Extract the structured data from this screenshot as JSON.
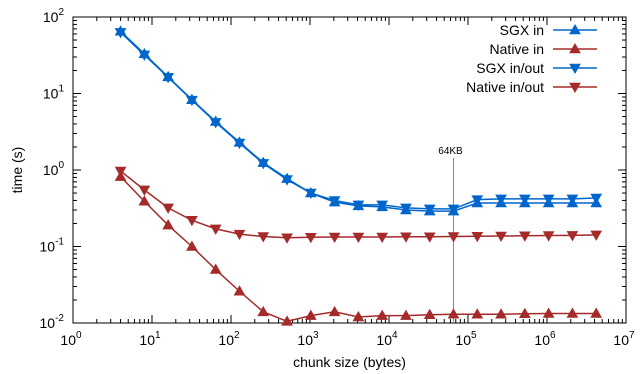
{
  "chart_data": {
    "type": "line",
    "xscale": "log",
    "yscale": "log",
    "xlabel": "chunk size (bytes)",
    "ylabel": "time (s)",
    "xlim": [
      1,
      10000000
    ],
    "ylim": [
      0.01,
      100
    ],
    "x_ticks": [
      {
        "base": "10",
        "exp": "0",
        "value": 1
      },
      {
        "base": "10",
        "exp": "1",
        "value": 10
      },
      {
        "base": "10",
        "exp": "2",
        "value": 100
      },
      {
        "base": "10",
        "exp": "3",
        "value": 1000
      },
      {
        "base": "10",
        "exp": "4",
        "value": 10000
      },
      {
        "base": "10",
        "exp": "5",
        "value": 100000
      },
      {
        "base": "10",
        "exp": "6",
        "value": 1000000
      },
      {
        "base": "10",
        "exp": "7",
        "value": 10000000
      }
    ],
    "y_ticks": [
      {
        "base": "10",
        "exp": "-2",
        "value": 0.01
      },
      {
        "base": "10",
        "exp": "-1",
        "value": 0.1
      },
      {
        "base": "10",
        "exp": "0",
        "value": 1
      },
      {
        "base": "10",
        "exp": "1",
        "value": 10
      },
      {
        "base": "10",
        "exp": "2",
        "value": 100
      }
    ],
    "x": [
      4,
      8,
      16,
      32,
      64,
      128,
      256,
      512,
      1024,
      2048,
      4096,
      8192,
      16384,
      32768,
      65536,
      131072,
      262144,
      524288,
      1048576,
      2097152,
      4194304
    ],
    "series": [
      {
        "name": "SGX in",
        "color": "#0066cc",
        "marker": "triangle-up",
        "values": [
          65,
          33,
          16.5,
          8.3,
          4.3,
          2.3,
          1.25,
          0.77,
          0.5,
          0.38,
          0.34,
          0.33,
          0.3,
          0.29,
          0.29,
          0.37,
          0.37,
          0.37,
          0.37,
          0.37,
          0.37
        ]
      },
      {
        "name": "Native in",
        "color": "#a52a2a",
        "marker": "triangle-up",
        "values": [
          0.82,
          0.39,
          0.19,
          0.1,
          0.05,
          0.026,
          0.014,
          0.0105,
          0.0125,
          0.014,
          0.012,
          0.0125,
          0.0125,
          0.0128,
          0.013,
          0.013,
          0.013,
          0.0132,
          0.0133,
          0.0133,
          0.0133
        ]
      },
      {
        "name": "SGX in/out",
        "color": "#0066cc",
        "marker": "triangle-down",
        "values": [
          63,
          32,
          16.3,
          8.2,
          4.2,
          2.25,
          1.22,
          0.75,
          0.5,
          0.4,
          0.35,
          0.35,
          0.32,
          0.31,
          0.31,
          0.41,
          0.42,
          0.42,
          0.42,
          0.42,
          0.43
        ]
      },
      {
        "name": "Native in/out",
        "color": "#a52a2a",
        "marker": "triangle-down",
        "values": [
          0.97,
          0.55,
          0.32,
          0.22,
          0.17,
          0.145,
          0.135,
          0.13,
          0.132,
          0.133,
          0.133,
          0.133,
          0.134,
          0.134,
          0.135,
          0.136,
          0.137,
          0.138,
          0.139,
          0.14,
          0.142
        ]
      }
    ],
    "annotations": [
      {
        "text": "64KB",
        "x": 65536
      }
    ],
    "legend_position": "top-right",
    "grid": false
  }
}
